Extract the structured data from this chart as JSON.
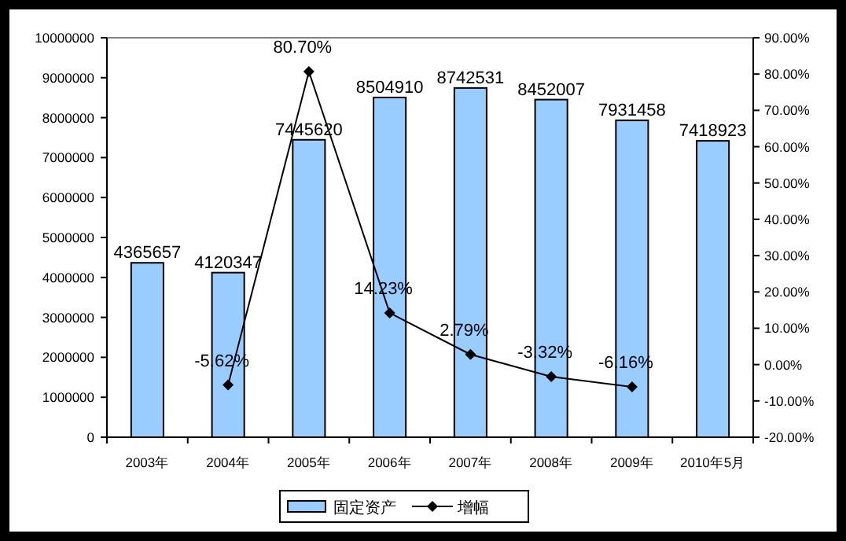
{
  "chart_data": {
    "type": "bar",
    "categories": [
      "2003年",
      "2004年",
      "2005年",
      "2006年",
      "2007年",
      "2008年",
      "2009年",
      "2010年5月"
    ],
    "series": [
      {
        "name": "固定资产",
        "color": "#99ccff",
        "values": [
          4365657,
          4120347,
          7445620,
          8504910,
          8742531,
          8452007,
          7931458,
          7418923
        ]
      },
      {
        "name": "增幅",
        "type": "line",
        "axis": "y2",
        "color": "#000000",
        "marker": "diamond",
        "values": [
          null,
          -5.62,
          80.7,
          14.23,
          2.79,
          -3.32,
          -6.16,
          null
        ],
        "value_labels": [
          null,
          "-5.62%",
          "80.70%",
          "14.23%",
          "2.79%",
          "-3.32%",
          "-6.16%",
          null
        ]
      }
    ],
    "ylim": [
      0,
      10000000
    ],
    "yticks": [
      0,
      1000000,
      2000000,
      3000000,
      4000000,
      5000000,
      6000000,
      7000000,
      8000000,
      9000000,
      10000000
    ],
    "y2lim": [
      -20,
      90
    ],
    "y2ticks": [
      {
        "value": -20,
        "label": "-20.00%"
      },
      {
        "value": -10,
        "label": "-10.00%"
      },
      {
        "value": 0,
        "label": "0.00%"
      },
      {
        "value": 10,
        "label": "10.00%"
      },
      {
        "value": 20,
        "label": "20.00%"
      },
      {
        "value": 30,
        "label": "30.00%"
      },
      {
        "value": 40,
        "label": "40.00%"
      },
      {
        "value": 50,
        "label": "50.00%"
      },
      {
        "value": 60,
        "label": "60.00%"
      },
      {
        "value": 70,
        "label": "70.00%"
      },
      {
        "value": 80,
        "label": "80.00%"
      },
      {
        "value": 90,
        "label": "90.00%"
      }
    ],
    "data_labels": true,
    "legend": "bottom"
  }
}
